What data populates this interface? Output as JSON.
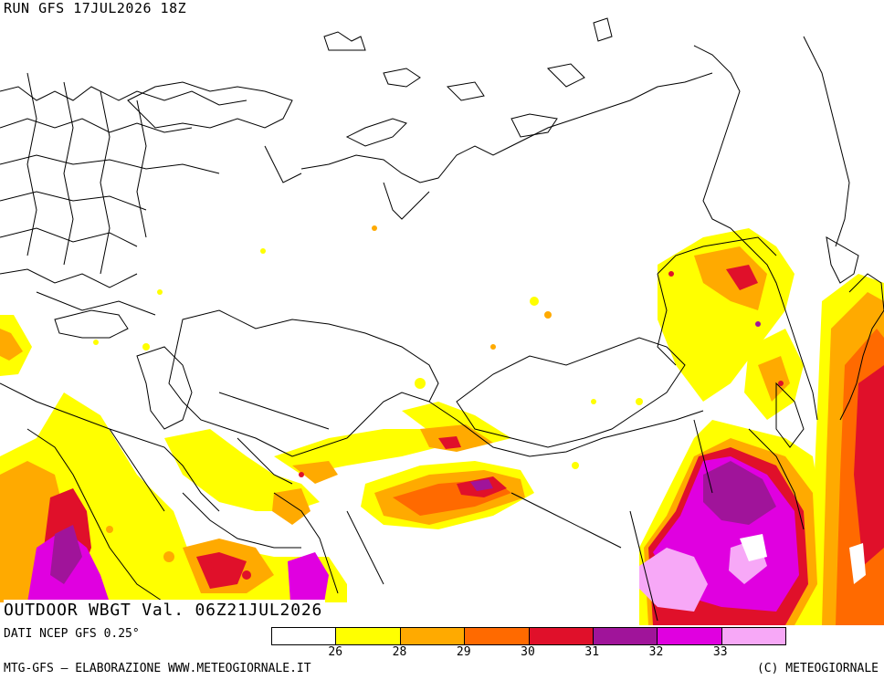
{
  "header": {
    "run_label": "RUN GFS 17JUL2026 18Z"
  },
  "map": {
    "field_title": "OUTDOOR WBGT Val. 06Z21JUL2026",
    "palette": {
      "land_bg": "#ffffff",
      "borders": "#000000",
      "c26": "#ffff00",
      "c28": "#ffaa00",
      "c29": "#ff6a00",
      "c30": "#e0102a",
      "c31": "#a0149a",
      "c32": "#e000e0",
      "c33": "#f7a8f7"
    }
  },
  "legend": {
    "colors": [
      "#ffffff",
      "#ffff00",
      "#ffaa00",
      "#ff6a00",
      "#e0102a",
      "#a0149a",
      "#e000e0",
      "#f7a8f7"
    ],
    "labels": [
      "26",
      "28",
      "29",
      "30",
      "31",
      "32",
      "33"
    ]
  },
  "footer": {
    "source": "DATI NCEP GFS 0.25°",
    "credit_left": "MTG-GFS — ELABORAZIONE WWW.METEOGIORNALE.IT",
    "credit_right": "(C) METEOGIORNALE"
  }
}
